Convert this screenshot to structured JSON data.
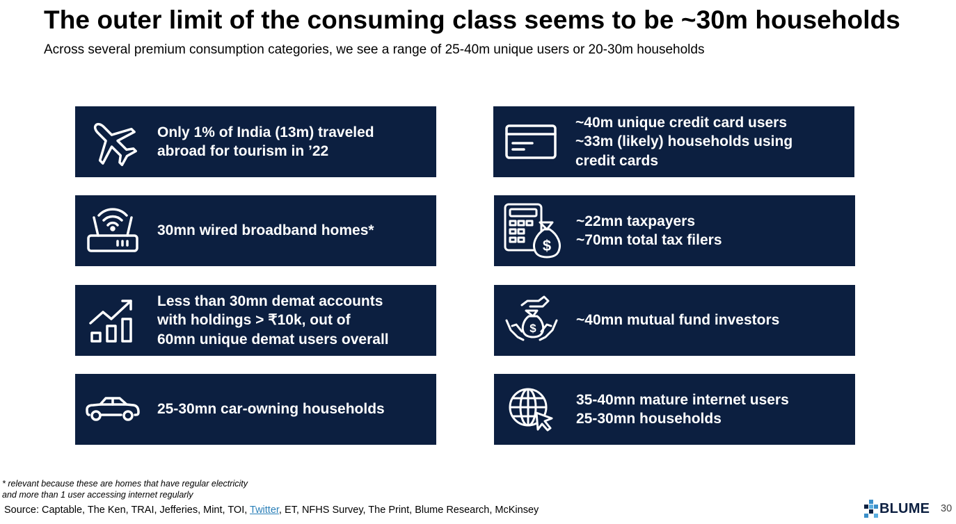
{
  "header": {
    "title": "The outer limit of the consuming class seems to be ~30m households",
    "subtitle": "Across several premium consumption categories, we see a range of 25-40m unique users or 20-30m households"
  },
  "cards": [
    {
      "icon": "airplane-icon",
      "lines": [
        "Only 1% of India (13m) traveled",
        "abroad for tourism in ’22"
      ]
    },
    {
      "icon": "credit-card-icon",
      "lines": [
        "~40m unique credit card users",
        "~33m (likely) households using",
        "credit cards"
      ]
    },
    {
      "icon": "wifi-router-icon",
      "lines": [
        "30mn wired broadband homes*"
      ]
    },
    {
      "icon": "tax-calculator-money-bag-icon",
      "lines": [
        "~22mn taxpayers",
        "~70mn total tax filers"
      ]
    },
    {
      "icon": "growth-chart-icon",
      "lines": [
        "Less than 30mn demat accounts",
        "with holdings > ₹10k, out of",
        "60mn unique demat users overall"
      ]
    },
    {
      "icon": "hands-money-bag-icon",
      "lines": [
        "~40mn mutual fund investors"
      ]
    },
    {
      "icon": "car-icon",
      "lines": [
        "25-30mn car-owning households"
      ]
    },
    {
      "icon": "globe-cursor-icon",
      "lines": [
        "35-40mn mature internet users",
        "25-30mn households"
      ]
    }
  ],
  "footnote": {
    "line1": "* relevant because these are homes that have regular electricity",
    "line2": "and more than 1 user accessing internet regularly"
  },
  "source": {
    "prefix": "Source: Captable, The Ken, TRAI,  Jefferies, Mint, TOI, ",
    "link": "Twitter",
    "suffix": ", ET, NFHS Survey, The Print, Blume Research, McKinsey"
  },
  "branding": {
    "logo_text": "BLUME",
    "page_number": "30"
  },
  "colors": {
    "card_background": "#0c1f40",
    "card_text": "#ffffff",
    "link": "#2a7fb8"
  }
}
